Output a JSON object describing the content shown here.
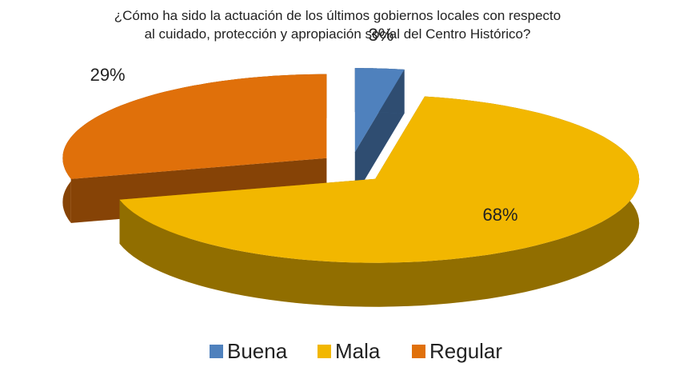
{
  "chart_data": {
    "type": "pie",
    "title": "¿Cómo ha sido la actuación de los últimos gobiernos locales con respecto al cuidado, protección y apropiación social del Centro Histórico?",
    "categories": [
      "Buena",
      "Mala",
      "Regular"
    ],
    "values": [
      3,
      68,
      29
    ],
    "value_labels": [
      "3%",
      "68%",
      "29%"
    ],
    "colors": [
      "#4f81bd",
      "#f2b700",
      "#e0700a"
    ],
    "legend": "bottom"
  }
}
